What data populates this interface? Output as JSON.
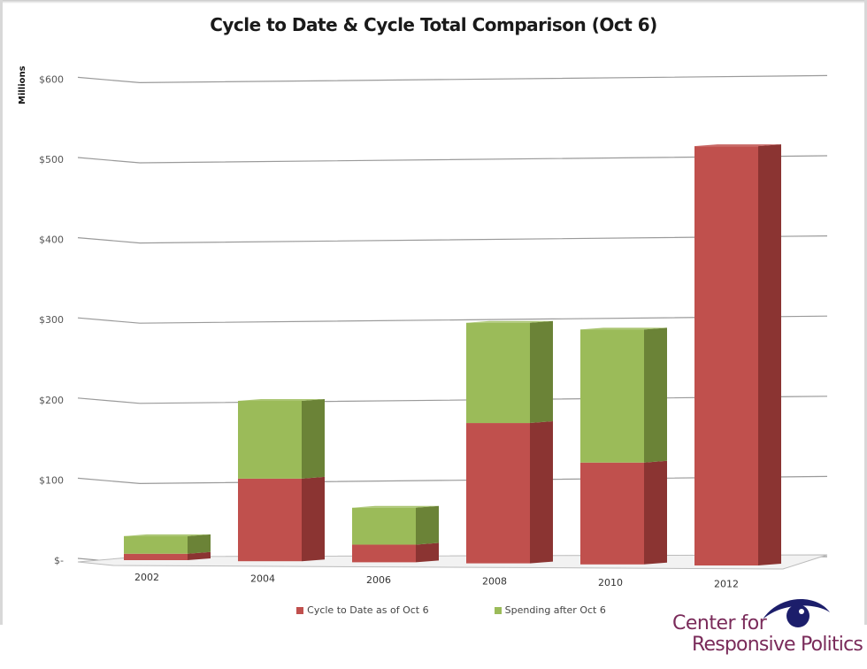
{
  "chart_data": {
    "type": "bar",
    "stacked": true,
    "style": "3d-column",
    "title": "Cycle to Date & Cycle Total Comparison (Oct 6)",
    "xlabel": "",
    "ylabel": "Millions",
    "ylim": [
      0,
      600
    ],
    "yticks": [
      0,
      100,
      200,
      300,
      400,
      500,
      600
    ],
    "ytick_labels": [
      "$-",
      "$100",
      "$200",
      "$300",
      "$400",
      "$500",
      "$600"
    ],
    "grid": true,
    "legend_position": "bottom",
    "categories": [
      "2002",
      "2004",
      "2006",
      "2008",
      "2010",
      "2012"
    ],
    "series": [
      {
        "name": "Cycle to Date as of Oct 6",
        "color": "#c0504d",
        "side_color": "#8b3432",
        "values": [
          8,
          103,
          22,
          175,
          127,
          523
        ]
      },
      {
        "name": "Spending after Oct 6",
        "color": "#9bbb59",
        "side_color": "#6b8337",
        "values": [
          22,
          97,
          46,
          125,
          166,
          0
        ]
      }
    ]
  },
  "logo": {
    "line1": "Center for",
    "line2": "Responsive Politics",
    "eye_color": "#1c1e6b",
    "text_color": "#7a2b5a"
  }
}
